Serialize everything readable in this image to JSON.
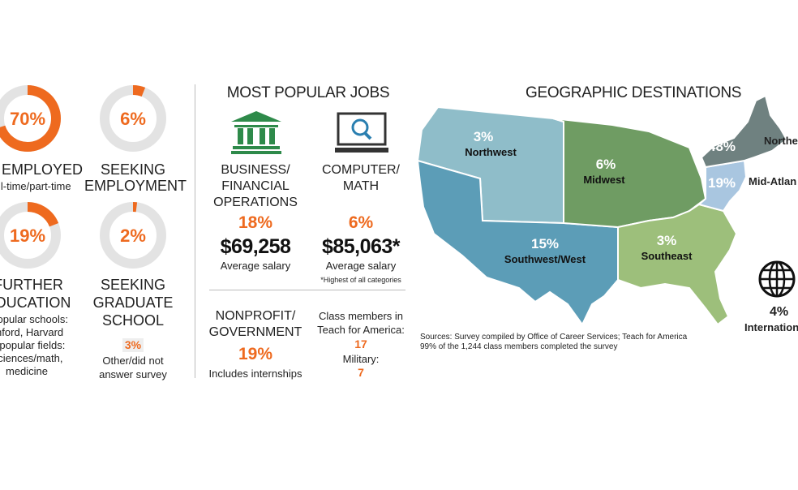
{
  "status": {
    "employed": {
      "pct": "70%",
      "label": "EMPLOYED",
      "sub": "ll-time/part-time",
      "value": 70
    },
    "seeking_employment": {
      "pct": "6%",
      "label1": "SEEKING",
      "label2": "EMPLOYMENT",
      "value": 6
    },
    "further_education": {
      "pct": "19%",
      "label1": "FURTHER",
      "label2": "EDUCATION",
      "value": 19,
      "lines": [
        "t popular schools:",
        "anford, Harvard",
        "st popular fields:",
        "Sciences/math,",
        "medicine"
      ]
    },
    "seeking_graduate": {
      "pct": "2%",
      "label1": "SEEKING",
      "label2": "GRADUATE",
      "label3": "SCHOOL",
      "value": 2
    },
    "other": {
      "pct": "3%",
      "line1": "Other/did not",
      "line2": "answer survey"
    }
  },
  "jobs": {
    "title": "MOST POPULAR JOBS",
    "business": {
      "icon": "bank-icon",
      "label1": "BUSINESS/",
      "label2": "FINANCIAL",
      "label3": "OPERATIONS",
      "pct": "18%",
      "salary": "$69,258",
      "salary_label": "Average salary"
    },
    "computer": {
      "icon": "computer-search-icon",
      "label1": "COMPUTER/",
      "label2": "MATH",
      "pct": "6%",
      "salary": "$85,063*",
      "salary_label": "Average salary",
      "note": "*Highest of all categories"
    },
    "nonprofit": {
      "label1": "NONPROFIT/",
      "label2": "GOVERNMENT",
      "pct": "19%",
      "note": "Includes internships"
    },
    "tfa": {
      "line1": "Class members in",
      "line2": "Teach for America:",
      "value": "17",
      "military_label": "Military:",
      "military_value": "7"
    }
  },
  "geo": {
    "title": "GEOGRAPHIC DESTINATIONS",
    "colors": {
      "northwest": "#8fbdc9",
      "southwest": "#5c9db7",
      "midwest": "#6f9c63",
      "southeast": "#9dbf7b",
      "northeast": "#6f8180",
      "midatlantic": "#a9c6e0"
    },
    "regions": {
      "northwest": {
        "pct": "3%",
        "name": "Northwest"
      },
      "midwest": {
        "pct": "6%",
        "name": "Midwest"
      },
      "northeast": {
        "pct": "48%",
        "name": "Northe"
      },
      "midatlantic": {
        "pct": "19%",
        "name": "Mid-Atlan"
      },
      "southwest": {
        "pct": "15%",
        "name": "Southwest/West"
      },
      "southeast": {
        "pct": "3%",
        "name": "Southeast"
      }
    },
    "international": {
      "icon": "globe-icon",
      "pct": "4%",
      "name": "Internation"
    },
    "sources1": "Sources: Survey compiled by Office of Career Services; Teach for America",
    "sources2": "99% of the 1,244 class members completed the survey"
  }
}
